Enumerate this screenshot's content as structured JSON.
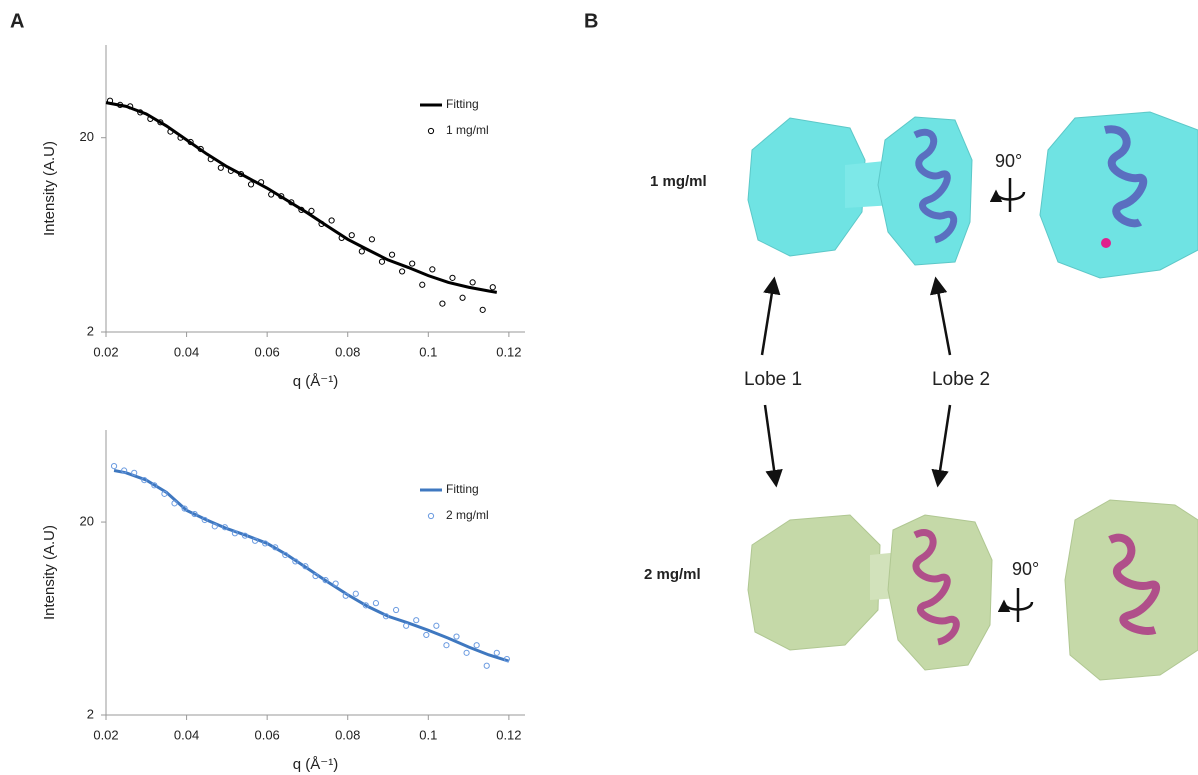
{
  "panels": [
    "A",
    "B"
  ],
  "chart_data": [
    {
      "type": "scatter",
      "yscale": "log",
      "legend": "upper right",
      "xlabel": "q (Å⁻¹)",
      "ylabel": "Intensity (A.U)",
      "xlim": [
        0.02,
        0.124
      ],
      "xticks": [
        0.02,
        0.04,
        0.06,
        0.08,
        0.1,
        0.12
      ],
      "ylim": [
        2,
        60
      ],
      "yticks": [
        2,
        20
      ],
      "series": [
        {
          "name": "Fitting",
          "kind": "line",
          "color": "#000000",
          "x": [
            0.02,
            0.025,
            0.03,
            0.035,
            0.04,
            0.045,
            0.05,
            0.055,
            0.06,
            0.065,
            0.07,
            0.075,
            0.08,
            0.085,
            0.09,
            0.095,
            0.1,
            0.105,
            0.11,
            0.115,
            0.117
          ],
          "values": [
            30.3,
            29,
            26.5,
            23,
            19.5,
            16.5,
            14.2,
            12.5,
            11,
            9.5,
            8.2,
            7,
            6,
            5.3,
            4.7,
            4.3,
            3.9,
            3.6,
            3.4,
            3.25,
            3.2
          ]
        },
        {
          "name": "1 mg/ml",
          "kind": "points",
          "color": "#000000",
          "x": [
            0.021,
            0.0235,
            0.026,
            0.0285,
            0.031,
            0.0335,
            0.036,
            0.0385,
            0.041,
            0.0435,
            0.046,
            0.0485,
            0.051,
            0.0535,
            0.056,
            0.0585,
            0.061,
            0.0635,
            0.066,
            0.0685,
            0.071,
            0.0735,
            0.076,
            0.0785,
            0.081,
            0.0835,
            0.086,
            0.0885,
            0.091,
            0.0935,
            0.096,
            0.0985,
            0.101,
            0.1035,
            0.106,
            0.1085,
            0.111,
            0.1135,
            0.116
          ],
          "values": [
            31,
            29.5,
            29,
            27,
            25,
            24,
            21.5,
            20,
            19,
            17.5,
            15.5,
            14,
            13.5,
            13,
            11.5,
            11.8,
            10.2,
            10,
            9.3,
            8.5,
            8.4,
            7.2,
            7.5,
            6.1,
            6.3,
            5.2,
            6,
            4.6,
            5,
            4.1,
            4.5,
            3.5,
            4.2,
            2.8,
            3.8,
            3,
            3.6,
            2.6,
            3.4
          ]
        }
      ]
    },
    {
      "type": "scatter",
      "yscale": "log",
      "legend": "upper right",
      "xlabel": "q (Å⁻¹)",
      "ylabel": "Intensity (A.U)",
      "xlim": [
        0.02,
        0.124
      ],
      "xticks": [
        0.02,
        0.04,
        0.06,
        0.08,
        0.1,
        0.12
      ],
      "ylim": [
        2,
        60
      ],
      "yticks": [
        2,
        20
      ],
      "series": [
        {
          "name": "Fitting",
          "kind": "line",
          "color": "#3f78c0",
          "x": [
            0.022,
            0.025,
            0.03,
            0.035,
            0.04,
            0.045,
            0.05,
            0.055,
            0.06,
            0.065,
            0.07,
            0.075,
            0.08,
            0.085,
            0.09,
            0.095,
            0.1,
            0.105,
            0.11,
            0.115,
            0.12
          ],
          "values": [
            37,
            36,
            33,
            28.5,
            23,
            20.5,
            18.5,
            17,
            15.5,
            13.5,
            11.5,
            9.8,
            8.4,
            7.3,
            6.5,
            6,
            5.5,
            5,
            4.5,
            4.1,
            3.8
          ]
        },
        {
          "name": "2 mg/ml",
          "kind": "points",
          "color": "#6b9be0",
          "x": [
            0.022,
            0.0245,
            0.027,
            0.0295,
            0.032,
            0.0345,
            0.037,
            0.0395,
            0.042,
            0.0445,
            0.047,
            0.0495,
            0.052,
            0.0545,
            0.057,
            0.0595,
            0.062,
            0.0645,
            0.067,
            0.0695,
            0.072,
            0.0745,
            0.077,
            0.0795,
            0.082,
            0.0845,
            0.087,
            0.0895,
            0.092,
            0.0945,
            0.097,
            0.0995,
            0.102,
            0.1045,
            0.107,
            0.1095,
            0.112,
            0.1145,
            0.117,
            0.1195
          ],
          "values": [
            39,
            37,
            36,
            33,
            31,
            28,
            25,
            23.5,
            22,
            20.5,
            19,
            18.8,
            17.5,
            17,
            16,
            15.5,
            14.8,
            13.5,
            12.5,
            11.8,
            10.5,
            10,
            9.6,
            8.3,
            8.5,
            7.4,
            7.6,
            6.5,
            7,
            5.8,
            6.2,
            5.2,
            5.8,
            4.6,
            5.1,
            4.2,
            4.6,
            3.6,
            4.2,
            3.9
          ]
        }
      ]
    }
  ],
  "structure": {
    "rows": [
      {
        "label": "1 mg/ml",
        "rotation": "90°"
      },
      {
        "label": "2 mg/ml",
        "rotation": "90°"
      }
    ],
    "lobes": [
      "Lobe 1",
      "Lobe 2"
    ]
  }
}
